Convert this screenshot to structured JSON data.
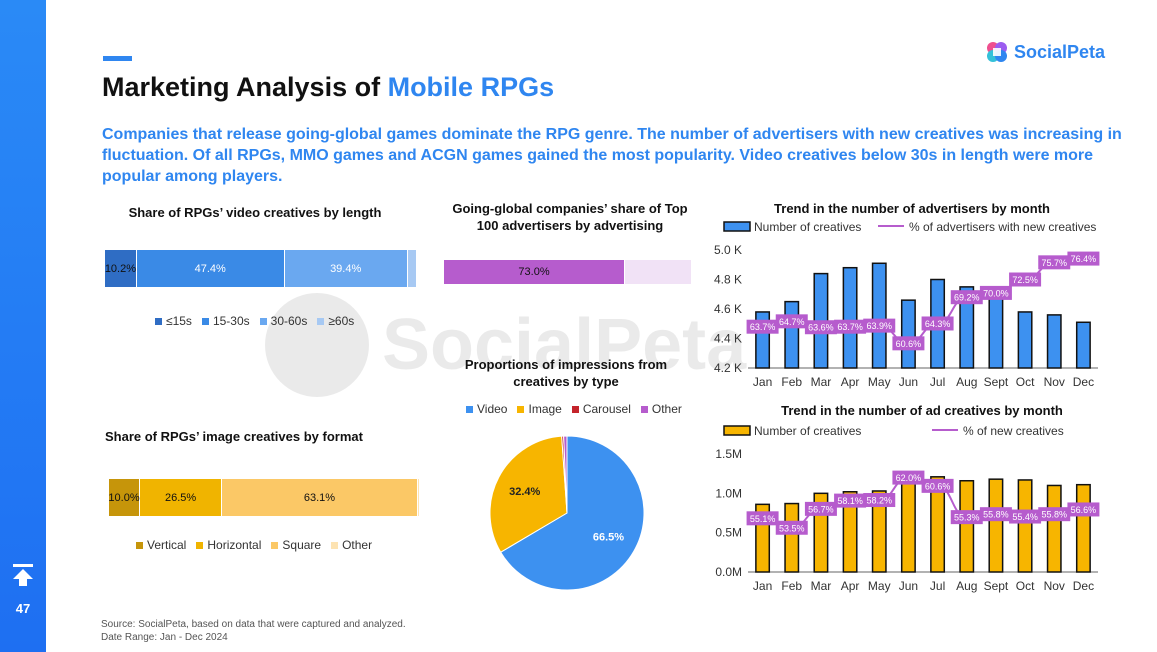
{
  "page": {
    "number": "47",
    "title_prefix": "Marketing Analysis of ",
    "title_highlight": "Mobile RPGs",
    "brand": "SocialPeta",
    "subtitle": "Companies that release going-global games dominate the RPG genre. The number of advertisers with new creatives was increasing in fluctuation. Of all RPGs, MMO games and ACGN games gained the most popularity. Video creatives below 30s in length were more popular among players.",
    "source_line1": "Source: SocialPeta, based on data that were captured and analyzed.",
    "source_line2": "Date Range: Jan - Dec 2024"
  },
  "chart_data": [
    {
      "id": "video_length",
      "type": "bar",
      "orientation": "horizontal-stacked-100",
      "title": "Share of RPGs’ video creatives by length",
      "series": [
        {
          "name": "≤15s",
          "value": 10.2,
          "label": "10.2%",
          "color": "#2f6dc4"
        },
        {
          "name": "15-30s",
          "value": 47.4,
          "label": "47.4%",
          "color": "#3a8ae6"
        },
        {
          "name": "30-60s",
          "value": 39.4,
          "label": "39.4%",
          "color": "#6aa8f0"
        },
        {
          "name": "≥60s",
          "value": 3.0,
          "label": "",
          "color": "#a7c9f3"
        }
      ]
    },
    {
      "id": "going_global",
      "type": "bar",
      "orientation": "horizontal-stacked-100",
      "title": "Going-global companies’ share of Top 100 advertisers by advertising",
      "series": [
        {
          "value": 73.0,
          "label": "73.0%",
          "color": "#b65ccd"
        },
        {
          "value": 27.0,
          "label": "",
          "color": "#f1e2f6"
        }
      ]
    },
    {
      "id": "image_format",
      "type": "bar",
      "orientation": "horizontal-stacked-100",
      "title": "Share of RPGs’ image creatives by format",
      "series": [
        {
          "name": "Vertical",
          "value": 10.0,
          "label": "10.0%",
          "color": "#c6950a"
        },
        {
          "name": "Horizontal",
          "value": 26.5,
          "label": "26.5%",
          "color": "#f0b400"
        },
        {
          "name": "Square",
          "value": 63.1,
          "label": "63.1%",
          "color": "#fbc866"
        },
        {
          "name": "Other",
          "value": 0.4,
          "label": "",
          "color": "#fde3b2"
        }
      ]
    },
    {
      "id": "impressions_type",
      "type": "pie",
      "title": "Proportions of impressions from creatives by type",
      "legend_position": "top",
      "slices": [
        {
          "name": "Video",
          "value": 66.5,
          "label": "66.5%",
          "color": "#3d91f0"
        },
        {
          "name": "Image",
          "value": 32.4,
          "label": "32.4%",
          "color": "#f7b500"
        },
        {
          "name": "Carousel",
          "value": 0.4,
          "label": "",
          "color": "#c4242b"
        },
        {
          "name": "Other",
          "value": 0.7,
          "label": "",
          "color": "#b65ccd"
        }
      ]
    },
    {
      "id": "advertisers_trend",
      "type": "bar",
      "title": "Trend in the number of advertisers by month",
      "categories": [
        "Jan",
        "Feb",
        "Mar",
        "Apr",
        "May",
        "Jun",
        "Jul",
        "Aug",
        "Sept",
        "Oct",
        "Nov",
        "Dec"
      ],
      "bar_series": {
        "name": "Number of creatives",
        "values": [
          4.58,
          4.65,
          4.84,
          4.88,
          4.91,
          4.66,
          4.8,
          4.75,
          4.7,
          4.58,
          4.56,
          4.51
        ],
        "color": "#3d91f0"
      },
      "line_series": {
        "name": "% of advertisers with new creatives",
        "values": [
          63.7,
          64.7,
          63.6,
          63.7,
          63.9,
          60.6,
          64.3,
          69.2,
          70.0,
          72.5,
          75.7,
          76.4
        ],
        "labels": [
          "63.7%",
          "64.7%",
          "63.6%",
          "63.7%",
          "63.9%",
          "60.6%",
          "64.3%",
          "69.2%",
          "70.0%",
          "72.5%",
          "75.7%",
          "76.4%"
        ],
        "color": "#b65ccd",
        "range": [
          56,
          78
        ]
      },
      "ylim": [
        4.2,
        5.0
      ],
      "yticks": [
        4.2,
        4.4,
        4.6,
        4.8,
        5.0
      ],
      "ytick_labels": [
        "4.2 K",
        "4.4 K",
        "4.6 K",
        "4.8 K",
        "5.0 K"
      ],
      "legend_position": "top"
    },
    {
      "id": "ad_creatives_trend",
      "type": "bar",
      "title": "Trend in the number of ad creatives by month",
      "categories": [
        "Jan",
        "Feb",
        "Mar",
        "Apr",
        "May",
        "Jun",
        "Jul",
        "Aug",
        "Sept",
        "Oct",
        "Nov",
        "Dec"
      ],
      "bar_series": {
        "name": "Number of creatives",
        "values": [
          0.86,
          0.87,
          1.0,
          1.02,
          1.03,
          1.14,
          1.21,
          1.16,
          1.18,
          1.17,
          1.1,
          1.11
        ],
        "color": "#f7b500"
      },
      "line_series": {
        "name": "% of new creatives",
        "values": [
          55.1,
          53.5,
          56.7,
          58.1,
          58.2,
          62.0,
          60.6,
          55.3,
          55.8,
          55.4,
          55.8,
          56.6
        ],
        "labels": [
          "55.1%",
          "53.5%",
          "56.7%",
          "58.1%",
          "58.2%",
          "62.0%",
          "60.6%",
          "55.3%",
          "55.8%",
          "55.4%",
          "55.8%",
          "56.6%"
        ],
        "color": "#b65ccd",
        "range": [
          46,
          66
        ]
      },
      "ylim": [
        0,
        1.5
      ],
      "yticks": [
        0,
        0.5,
        1.0,
        1.5
      ],
      "ytick_labels": [
        "0.0M",
        "0.5M",
        "1.0M",
        "1.5M"
      ],
      "legend_position": "top"
    }
  ]
}
